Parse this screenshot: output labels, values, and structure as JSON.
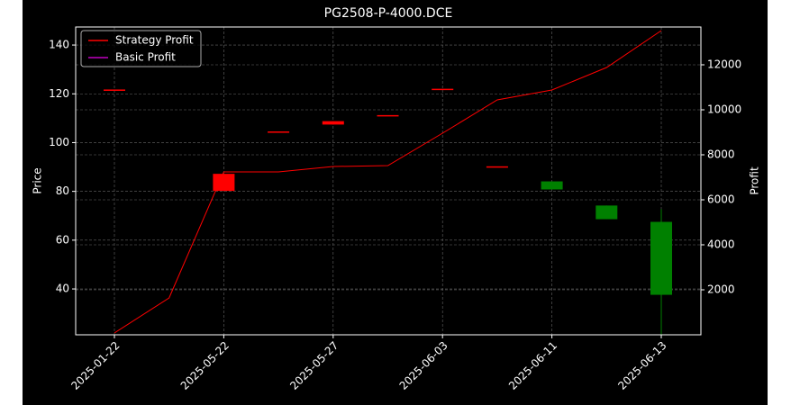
{
  "chart_data": {
    "type": "candlestick",
    "title": "PG2508-P-4000.DCE",
    "categories": [
      "2025-01-22",
      null,
      "2025-05-22",
      null,
      "2025-05-27",
      null,
      "2025-06-03",
      null,
      "2025-06-11",
      null,
      "2025-06-13"
    ],
    "open": [
      121.5,
      null,
      80.2,
      104.3,
      107.4,
      111.0,
      121.8,
      90.0,
      84.1,
      74.2,
      67.5
    ],
    "high": [
      121.5,
      null,
      87.2,
      104.3,
      108.8,
      111.0,
      121.8,
      90.0,
      84.1,
      74.2,
      72.7
    ],
    "low": [
      121.5,
      null,
      80.2,
      104.3,
      107.4,
      111.0,
      121.8,
      90.0,
      80.8,
      68.6,
      21
    ],
    "close": [
      121.5,
      null,
      87.2,
      104.3,
      108.8,
      111.0,
      121.8,
      90.0,
      80.8,
      68.6,
      37.6
    ],
    "up_color": "#ff0000",
    "down_color": "#008000",
    "series": [
      {
        "name": "Strategy Profit",
        "color": "#ff0000",
        "axis": "y2",
        "values": [
          80,
          1640,
          7240,
          7240,
          7480,
          7520,
          8960,
          10440,
          10880,
          11880,
          13520
        ]
      },
      {
        "name": "Basic Profit",
        "color": "#bf00bf",
        "axis": "y2",
        "values": [
          null,
          null,
          null,
          null,
          null,
          null,
          null,
          null,
          null,
          null,
          null
        ]
      }
    ],
    "ylabel": "Price",
    "y2label": "Profit",
    "ylim": [
      21.2,
      147.4
    ],
    "yticks": [
      40,
      60,
      80,
      100,
      120,
      140
    ],
    "y2lim": [
      0,
      13680
    ],
    "y2ticks": [
      2000,
      4000,
      6000,
      8000,
      10000,
      12000
    ],
    "grid": true,
    "legend": "upper left"
  }
}
